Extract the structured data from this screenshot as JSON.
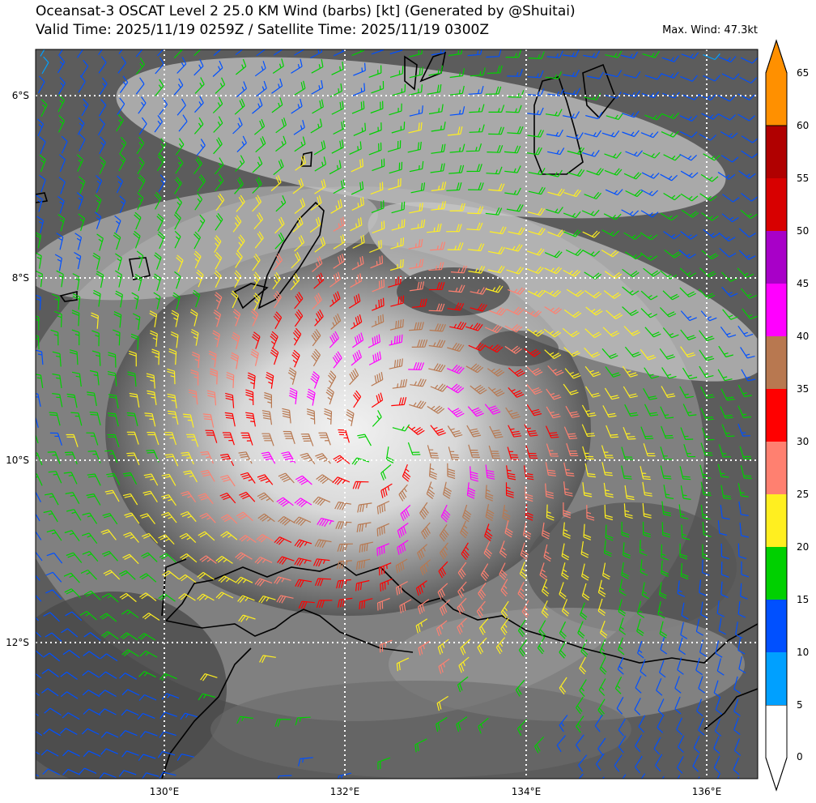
{
  "header": {
    "title_line1": "Oceansat-3 OSCAT Level 2 25.0 KM Wind (barbs) [kt] (Generated by @Shuitai)",
    "title_line2": "Valid Time: 2025/11/19 0259Z / Satellite Time: 2025/11/19 0300Z",
    "max_wind": "Max. Wind: 47.3kt"
  },
  "map": {
    "lat_labels": [
      "6°S",
      "8°S",
      "10°S",
      "12°S"
    ],
    "lon_labels": [
      "130°E",
      "132°E",
      "134°E",
      "136°E"
    ],
    "storm_center": {
      "lon": 132.4,
      "lat": -9.85
    }
  },
  "colorbar": {
    "ticks": [
      "0",
      "5",
      "10",
      "15",
      "20",
      "25",
      "30",
      "35",
      "40",
      "45",
      "50",
      "55",
      "60",
      "65"
    ],
    "colors": [
      "#ffffff",
      "#00a0ff",
      "#0050ff",
      "#00d000",
      "#ffef20",
      "#ff8070",
      "#ff0000",
      "#b87850",
      "#ff00ff",
      "#a800c8",
      "#d80000",
      "#b00000",
      "#ff9000"
    ]
  }
}
